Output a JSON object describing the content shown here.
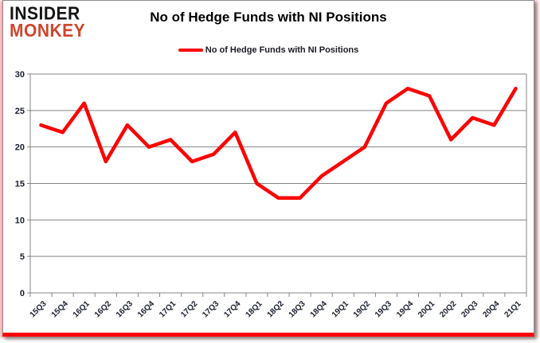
{
  "logo": {
    "line1": "INSIDER",
    "line2": "MONKEY",
    "color1": "#141414",
    "color2": "#d0452c"
  },
  "header": {
    "title": "No of Hedge Funds with NI Positions"
  },
  "legend": {
    "label": "No of Hedge Funds with NI Positions",
    "line_color": "#fe0000"
  },
  "chart_data": {
    "type": "line",
    "title": "No of Hedge Funds with NI Positions",
    "categories": [
      "15Q3",
      "15Q4",
      "16Q1",
      "16Q2",
      "16Q3",
      "16Q4",
      "17Q1",
      "17Q2",
      "17Q3",
      "17Q4",
      "18Q1",
      "18Q2",
      "18Q3",
      "18Q4",
      "19Q1",
      "19Q2",
      "19Q3",
      "19Q4",
      "20Q1",
      "20Q2",
      "20Q3",
      "20Q4",
      "21Q1"
    ],
    "series": [
      {
        "name": "No of Hedge Funds with NI Positions",
        "color": "#fe0000",
        "values": [
          23,
          22,
          26,
          18,
          23,
          20,
          21,
          18,
          19,
          22,
          15,
          13,
          13,
          16,
          18,
          20,
          26,
          28,
          27,
          21,
          24,
          23,
          28
        ]
      }
    ],
    "xlabel": "",
    "ylabel": "",
    "ylim": [
      0,
      30
    ],
    "yticks": [
      0,
      5,
      10,
      15,
      20,
      25,
      30
    ],
    "grid": true,
    "gridline_color": "#848484",
    "axis_label_color": "#1a1f2e",
    "legend_position": "top"
  }
}
